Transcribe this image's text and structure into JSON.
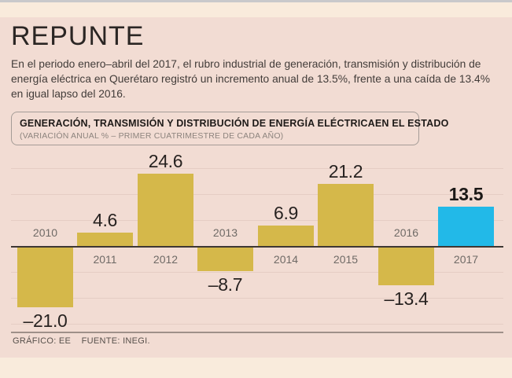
{
  "header": {
    "title": "REPUNTE",
    "intro": "En el periodo enero–abril del 2017, el rubro industrial de generación, transmisión y distribución de energía eléctrica en Querétaro registró un incremento anual de 13.5%, frente a una caída de 13.4% en igual lapso del 2016."
  },
  "chart_data": {
    "type": "bar",
    "title": "GENERACIÓN, TRANSMISIÓN Y DISTRIBUCIÓN DE ENERGÍA ELÉCTRICAEN EL ESTADO",
    "subtitle": "(VARIACIÓN ANUAL % – PRIMER CUATRIMESTRE DE CADA AÑO)",
    "categories": [
      "2010",
      "2011",
      "2012",
      "2013",
      "2014",
      "2015",
      "2016",
      "2017"
    ],
    "values": [
      -21.0,
      4.6,
      24.6,
      -8.7,
      6.9,
      21.2,
      -13.4,
      13.5
    ],
    "value_labels": [
      "–21.0",
      "4.6",
      "24.6",
      "–8.7",
      "6.9",
      "21.2",
      "–13.4",
      "13.5"
    ],
    "unit": "%",
    "highlight_index": 7,
    "ylim": [
      -25,
      28
    ],
    "grid": true,
    "legend": false,
    "colors": {
      "bar": "#d5b84a",
      "highlight_bar": "#22b9e8"
    }
  },
  "footer": {
    "credit": "GRÁFICO: EE",
    "source": "FUENTE: INEGI."
  },
  "colors": {
    "page_bg": "#f9ebdc",
    "card_bg": "#f2dcd3",
    "top_strip": "#c9c9cb",
    "text_dark": "#272220",
    "year_label_gray": "#6f6a66"
  }
}
